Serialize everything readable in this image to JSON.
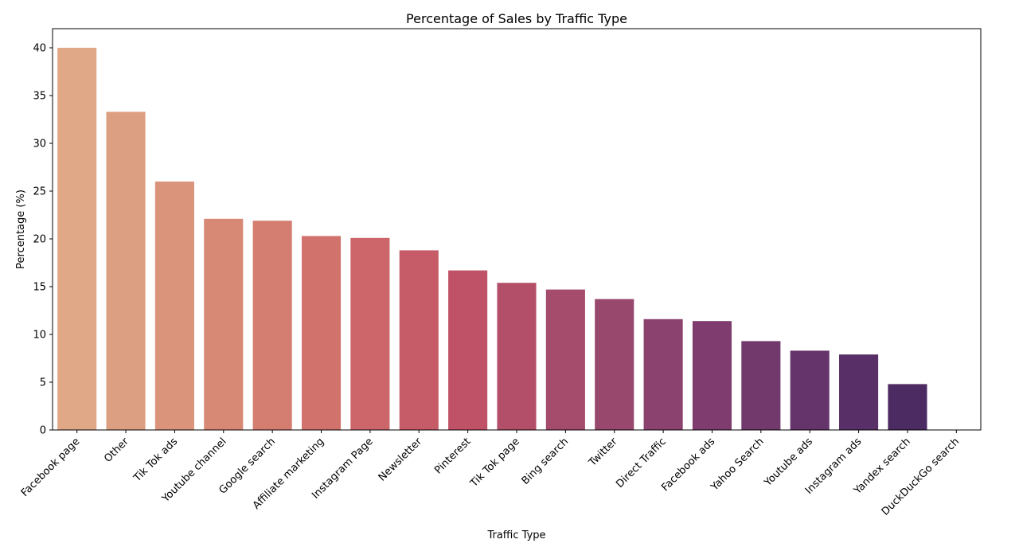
{
  "chart_data": {
    "type": "bar",
    "title": "Percentage of Sales by Traffic Type",
    "xlabel": "Traffic Type",
    "ylabel": "Percentage (%)",
    "ylim": [
      0,
      42
    ],
    "yticks": [
      0,
      5,
      10,
      15,
      20,
      25,
      30,
      35,
      40
    ],
    "grid": false,
    "categories": [
      "Facebook page",
      "Other",
      "Tik Tok ads",
      "Youtube channel",
      "Google search",
      "Affiliate marketing",
      "Instagram Page",
      "Newsletter",
      "Pinterest",
      "Tik Tok page",
      "Bing search",
      "Twitter",
      "Direct Traffic",
      "Facebook ads",
      "Yahoo Search",
      "Youtube ads",
      "Instagram ads",
      "Yandex search",
      "DuckDuckGo search"
    ],
    "values": [
      40.0,
      33.3,
      26.0,
      22.1,
      21.9,
      20.3,
      20.1,
      18.8,
      16.7,
      15.4,
      14.7,
      13.7,
      11.6,
      11.4,
      9.3,
      8.3,
      7.9,
      4.8,
      0.0
    ],
    "colors": [
      "#e0a887",
      "#dd9f81",
      "#da947b",
      "#d78976",
      "#d47d71",
      "#d1726d",
      "#cc666a",
      "#c55c68",
      "#bf5267",
      "#b34f69",
      "#a54b6b",
      "#98476d",
      "#8b426e",
      "#7e3d6e",
      "#71396c",
      "#65346a",
      "#582f66",
      "#4c2a62",
      "#40255d"
    ]
  }
}
